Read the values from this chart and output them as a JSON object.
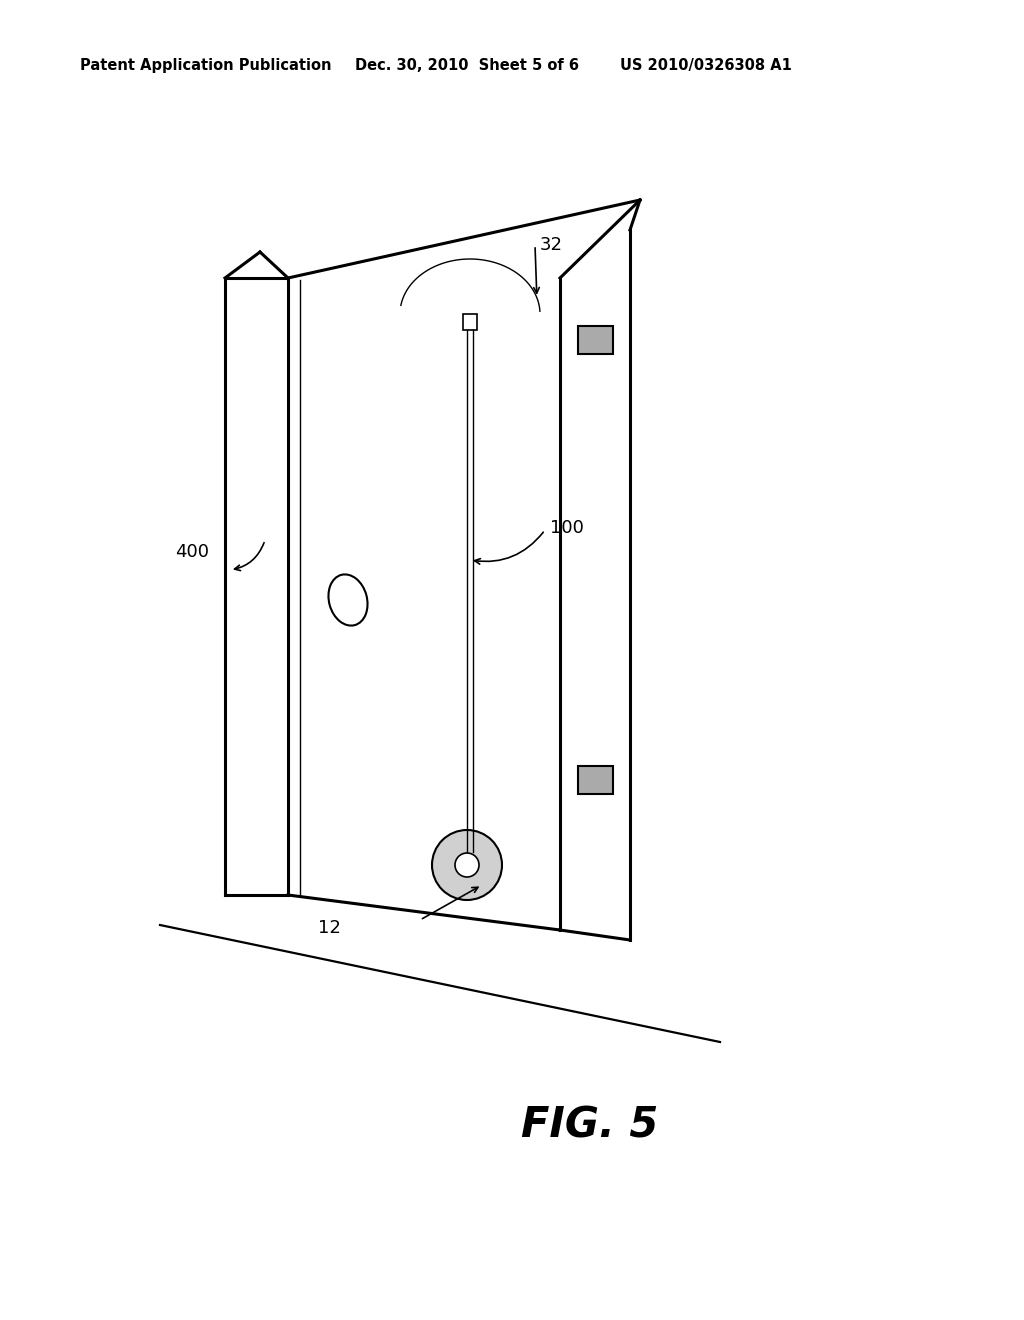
{
  "background_color": "#ffffff",
  "header_left": "Patent Application Publication",
  "header_mid": "Dec. 30, 2010  Sheet 5 of 6",
  "header_right": "US 2010/0326308 A1",
  "fig_label": "FIG. 5",
  "label_32": "32",
  "label_100": "100",
  "label_400": "400",
  "label_12": "12",
  "line_color": "#000000",
  "text_color": "#000000",
  "hinge_color": "#aaaaaa"
}
